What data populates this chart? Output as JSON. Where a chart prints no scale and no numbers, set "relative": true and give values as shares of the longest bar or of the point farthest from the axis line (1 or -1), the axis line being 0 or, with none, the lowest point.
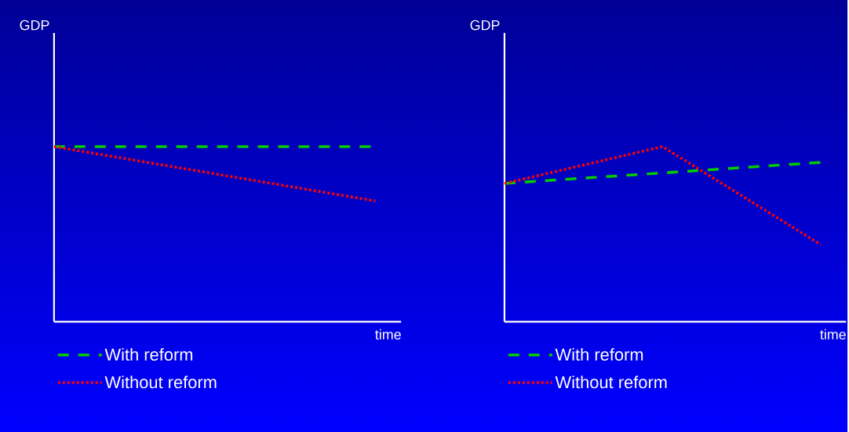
{
  "chart_data": [
    {
      "type": "line",
      "relative": true,
      "xlabel": "time",
      "ylabel": "GDP",
      "categories": [
        null,
        null
      ],
      "legend": "bottom",
      "series": [
        {
          "name": "With reform",
          "color": "#00cc00",
          "line_style": "dashed",
          "values": [
            1,
            1
          ]
        },
        {
          "name": "Without reform",
          "color": "#ff0000",
          "line_style": "dotted",
          "values": [
            1,
            0.69
          ]
        }
      ]
    },
    {
      "type": "line",
      "relative": true,
      "xlabel": "time",
      "ylabel": "GDP",
      "categories": [
        null,
        null,
        null
      ],
      "legend": "bottom",
      "series": [
        {
          "name": "With reform",
          "color": "#00cc00",
          "line_style": "dashed",
          "values": [
            0.79,
            0.85,
            0.91
          ]
        },
        {
          "name": "Without reform",
          "color": "#ff0000",
          "line_style": "dotted",
          "values": [
            0.79,
            1,
            0.44
          ]
        }
      ]
    }
  ]
}
